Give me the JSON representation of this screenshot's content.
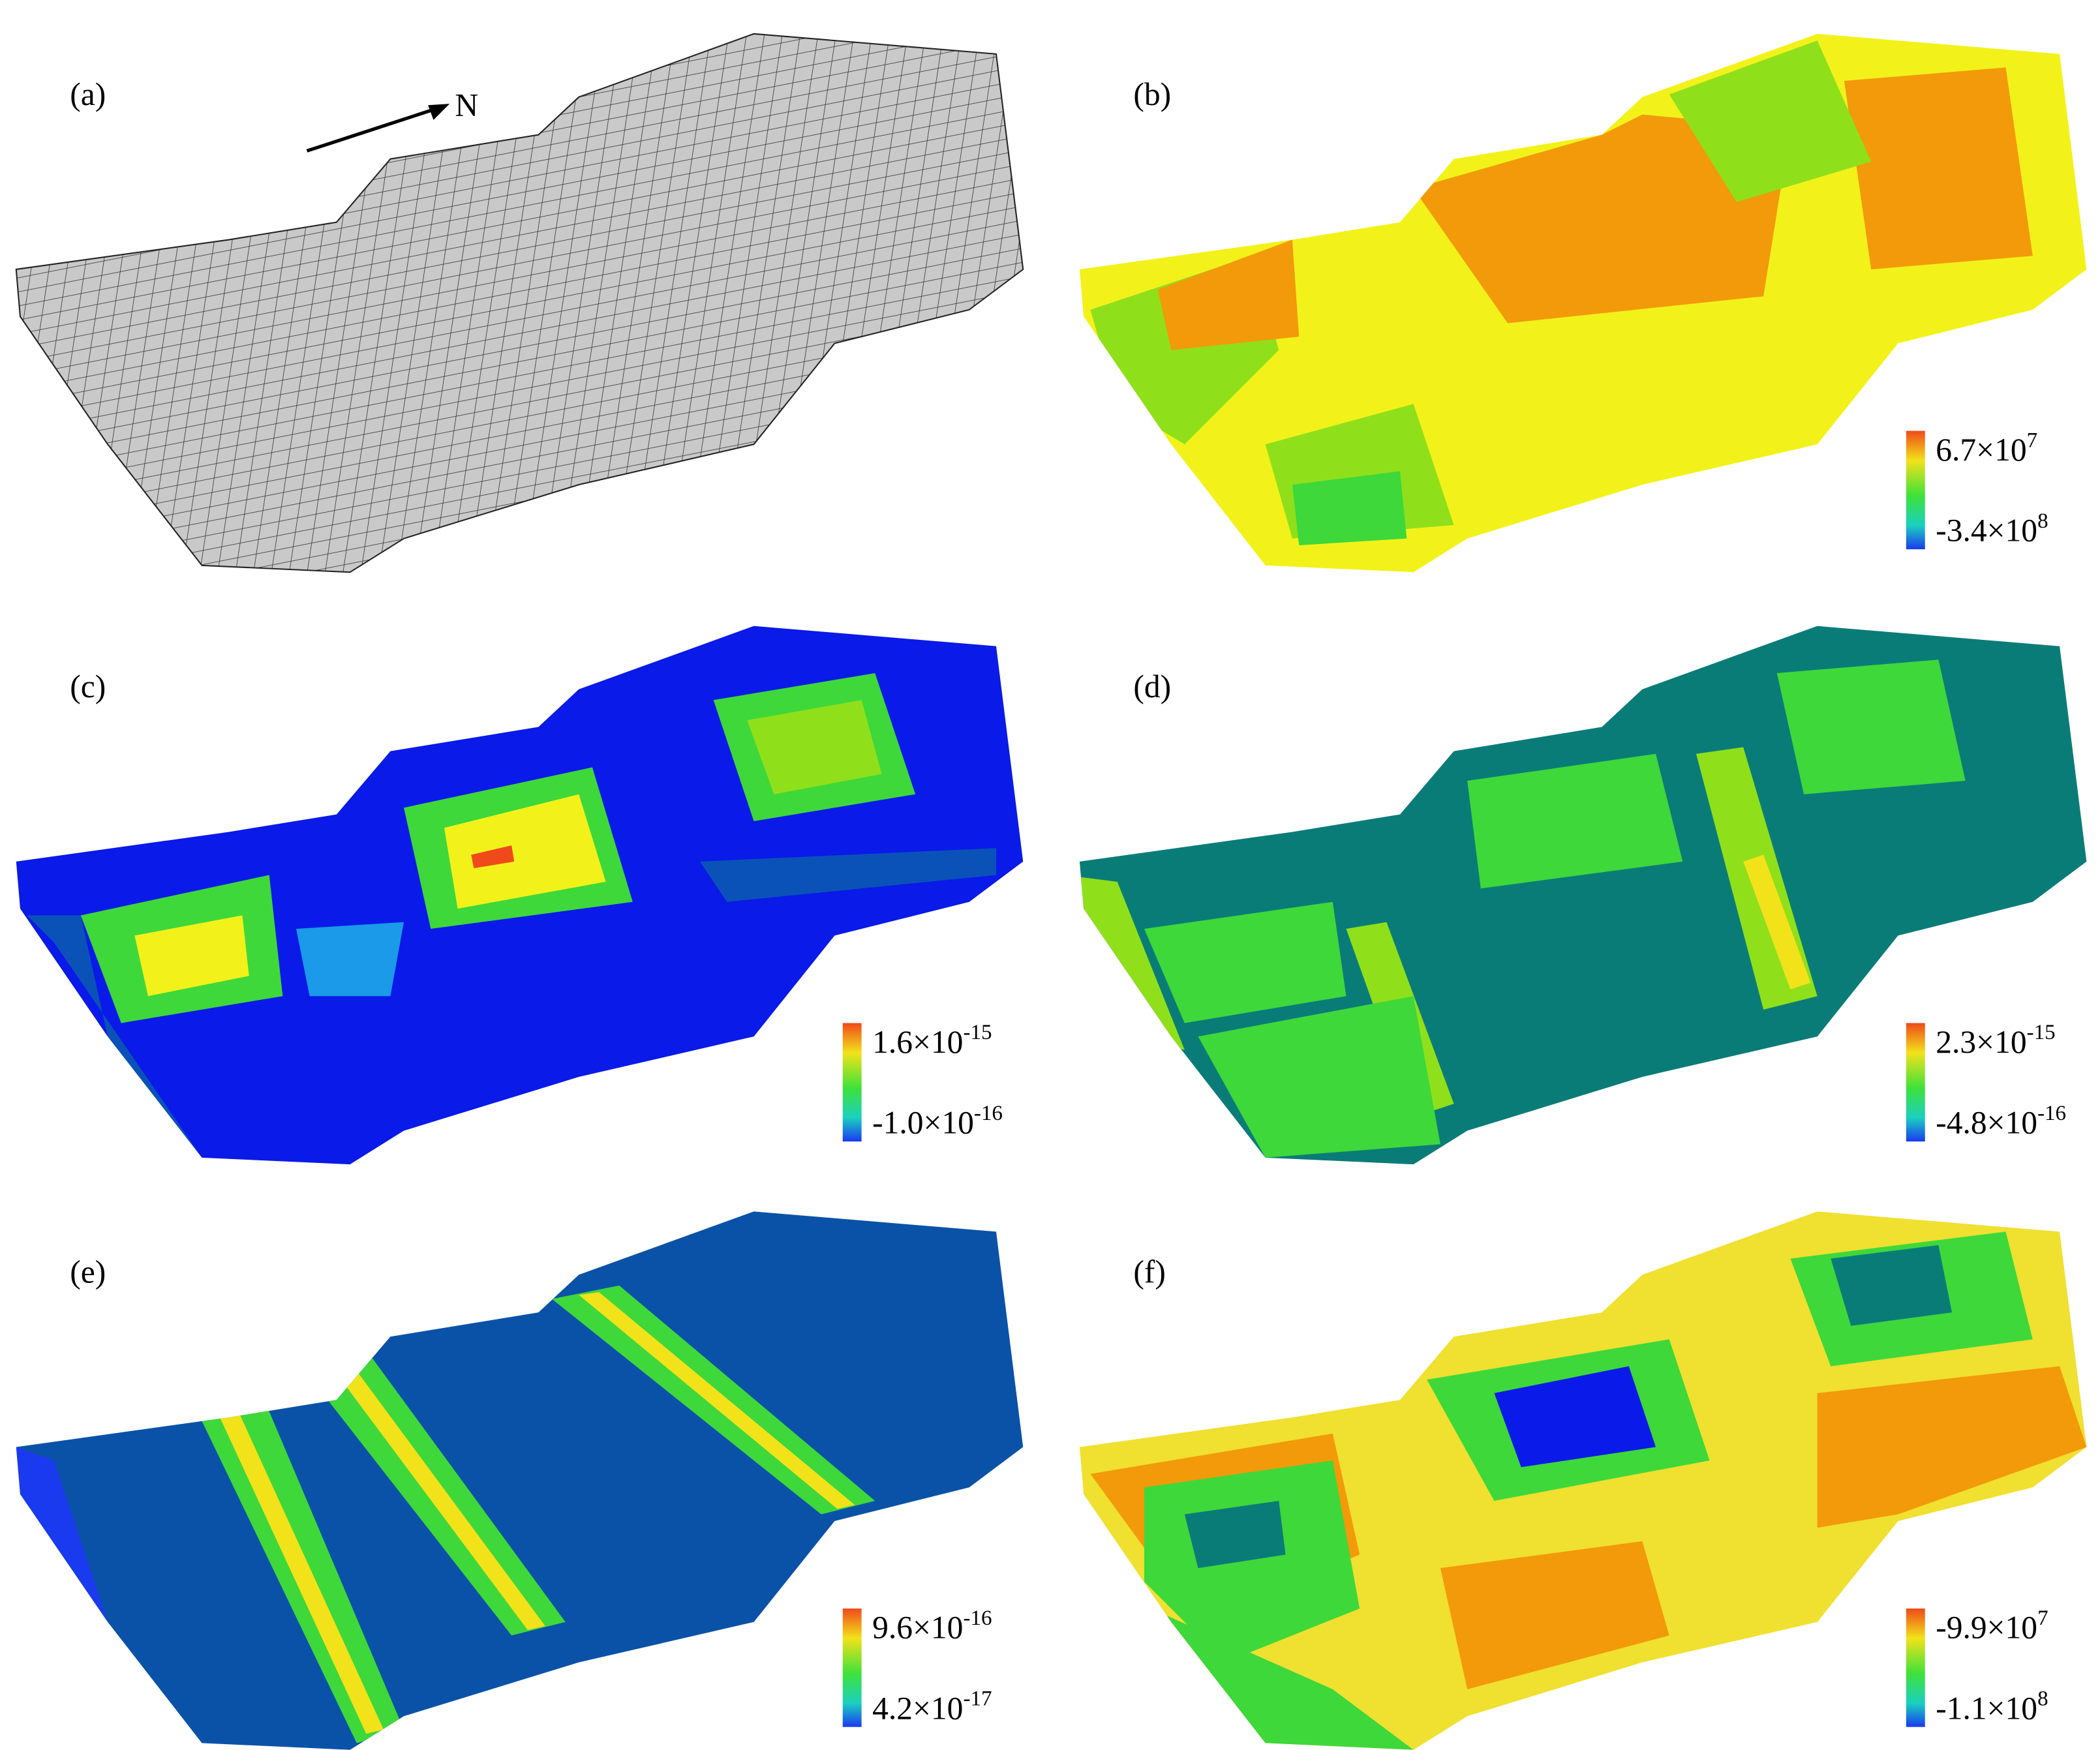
{
  "panels": [
    {
      "label": "(a)",
      "north": "N"
    },
    {
      "label": "(b)",
      "colorbar": {
        "max": {
          "base": "6.7×10",
          "exp": "7"
        },
        "min": {
          "base": "-3.4×10",
          "exp": "8"
        }
      }
    },
    {
      "label": "(c)",
      "colorbar": {
        "max": {
          "base": "1.6×10",
          "exp": "-15"
        },
        "min": {
          "base": "-1.0×10",
          "exp": "-16"
        }
      }
    },
    {
      "label": "(d)",
      "colorbar": {
        "max": {
          "base": "2.3×10",
          "exp": "-15"
        },
        "min": {
          "base": "-4.8×10",
          "exp": "-16"
        }
      }
    },
    {
      "label": "(e)",
      "colorbar": {
        "max": {
          "base": "9.6×10",
          "exp": "-16"
        },
        "min": {
          "base": "4.2×10",
          "exp": "-17"
        }
      }
    },
    {
      "label": "(f)",
      "colorbar": {
        "max": {
          "base": "-9.9×10",
          "exp": "7"
        },
        "min": {
          "base": "-1.1×10",
          "exp": "8"
        }
      }
    }
  ]
}
